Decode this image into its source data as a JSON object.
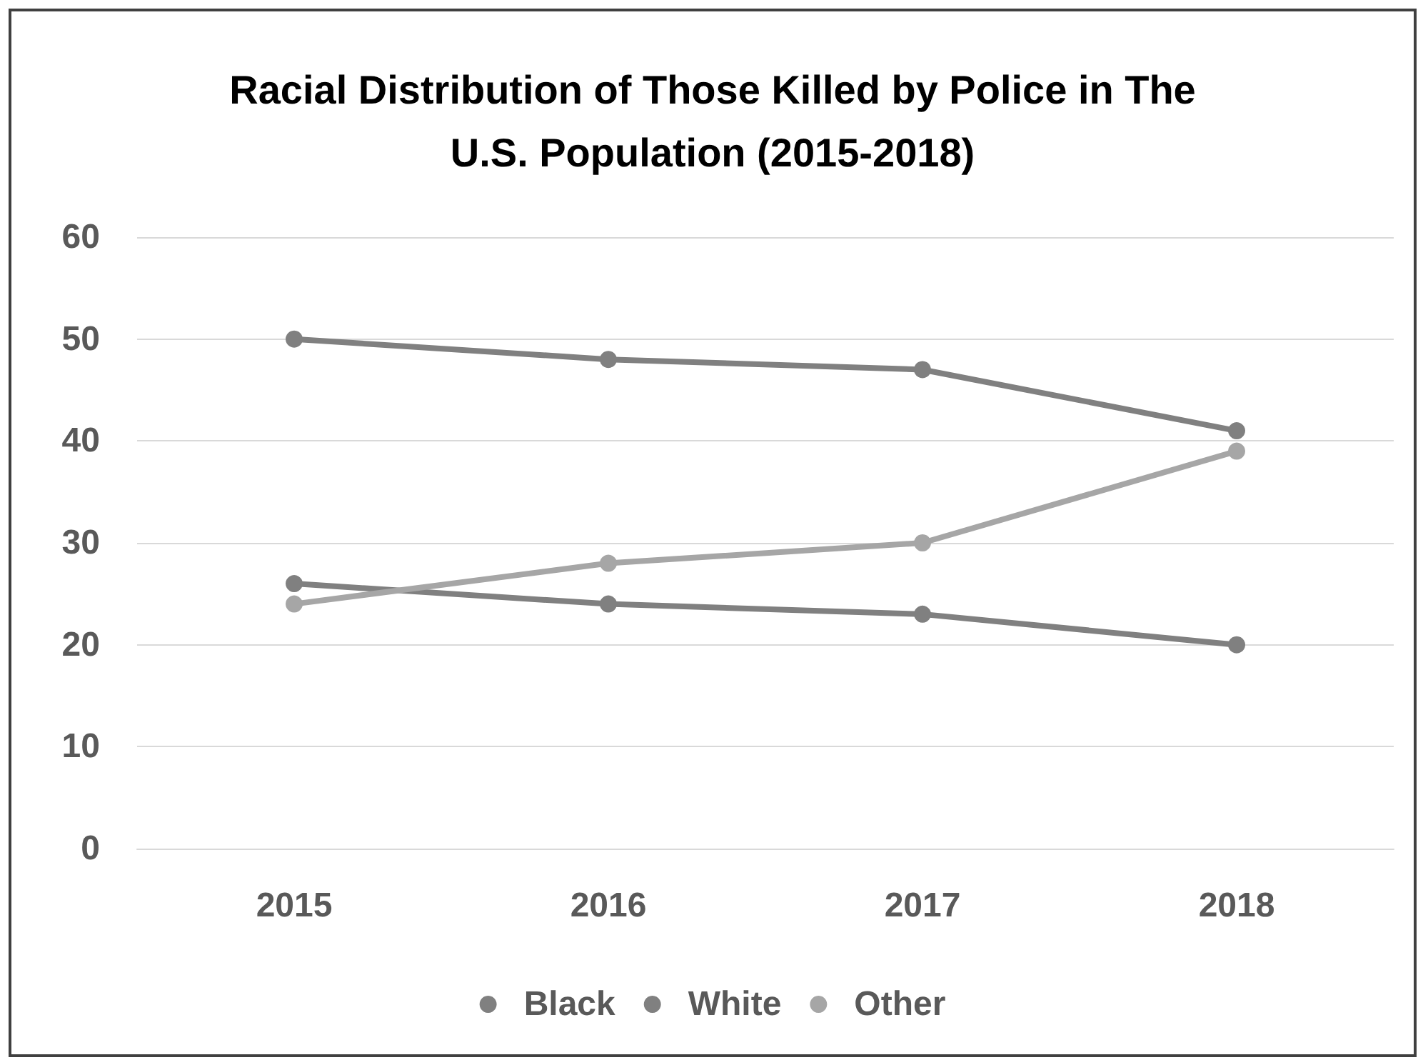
{
  "chart_data": {
    "type": "line",
    "title": "Racial Distribution of Those Killed by Police in The\nU.S. Population (2015-2018)",
    "categories": [
      "2015",
      "2016",
      "2017",
      "2018"
    ],
    "series": [
      {
        "name": "Black",
        "color": "#808080",
        "values": [
          26,
          24,
          23,
          20
        ]
      },
      {
        "name": "White",
        "color": "#808080",
        "values": [
          50,
          48,
          47,
          41
        ]
      },
      {
        "name": "Other",
        "color": "#a6a6a6",
        "values": [
          24,
          28,
          30,
          39
        ]
      }
    ],
    "ylim": [
      0,
      60
    ],
    "yticks": [
      0,
      10,
      20,
      30,
      40,
      50,
      60
    ],
    "grid": "y",
    "legend": "bottom",
    "marker": "circle",
    "line_style": "solid"
  }
}
